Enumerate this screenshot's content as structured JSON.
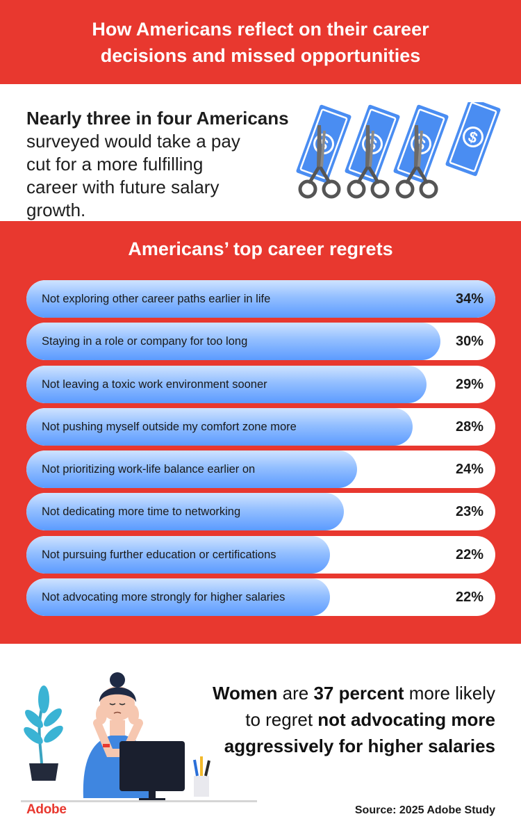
{
  "header": {
    "title": "How Americans reflect on their career decisions and missed opportunities"
  },
  "stat": {
    "strong": "Nearly three in four Americans",
    "rest": "surveyed would take a pay cut for a more fulfilling career with future salary growth.",
    "icon": "money-cut-icon"
  },
  "chart_data": {
    "type": "bar",
    "title": "Americans’ top career regrets",
    "categories": [
      "Not exploring other career paths earlier in life",
      "Staying in a role or company for too long",
      "Not leaving a toxic work environment sooner",
      "Not pushing myself outside my comfort zone more",
      "Not prioritizing work-life balance earlier on",
      "Not dedicating more time to networking",
      "Not pursuing further education or certifications",
      "Not advocating more strongly for higher salaries"
    ],
    "values": [
      34,
      30,
      29,
      28,
      24,
      23,
      22,
      22
    ],
    "value_labels": [
      "34%",
      "30%",
      "29%",
      "28%",
      "24%",
      "23%",
      "22%",
      "22%"
    ],
    "orientation": "horizontal",
    "xlim": [
      0,
      34
    ],
    "colors": {
      "bar": "#6aa6ff",
      "panel": "#e8382f"
    }
  },
  "bottom": {
    "w1": "Women",
    "w2": " are ",
    "w3": "37 percent",
    "w4": " more likely to regret ",
    "w5": "not advocating more aggressively for higher salaries",
    "illustration": "stressed-woman-at-desk-icon"
  },
  "footer": {
    "logo": "Adobe",
    "source": "Source: 2025 Adobe Study"
  },
  "colors": {
    "brand_red": "#e8382f",
    "bill_blue": "#4a8df2"
  }
}
